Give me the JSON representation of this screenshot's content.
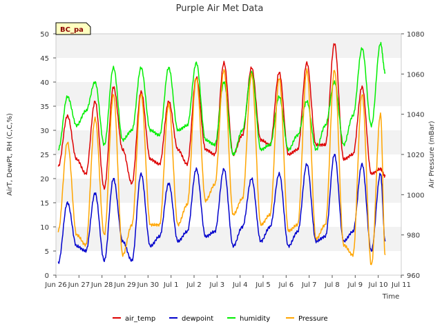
{
  "chart_data": {
    "type": "line",
    "title": "Purple Air Met Data",
    "site_badge": "BC_pa",
    "xlabel": "Time",
    "ylabel_left": "AirT, DewPt, RH (C,C,%)",
    "ylabel_right": "Air Pressure (mBar)",
    "xlim": [
      0,
      15
    ],
    "ylim_left": [
      0,
      50
    ],
    "ylim_right": [
      960,
      1080
    ],
    "x_ticks": [
      0,
      1,
      2,
      3,
      4,
      5,
      6,
      7,
      8,
      9,
      10,
      11,
      12,
      13,
      14,
      15
    ],
    "x_tick_labels": [
      "Jun 26",
      "Jun 27",
      "Jun 28",
      "Jun 29",
      "Jun 30",
      "Jul 1",
      "Jul 2",
      "Jul 3",
      "Jul 4",
      "Jul 5",
      "Jul 6",
      "Jul 7",
      "Jul 8",
      "Jul 9",
      "Jul 10",
      "Jul 11"
    ],
    "y_left_ticks": [
      0,
      5,
      10,
      15,
      20,
      25,
      30,
      35,
      40,
      45,
      50
    ],
    "y_right_ticks": [
      960,
      980,
      1000,
      1020,
      1040,
      1060,
      1080
    ],
    "grid": "horizontal bands",
    "legend_position": "bottom",
    "x": [
      0.1,
      0.5,
      0.9,
      1.3,
      1.7,
      2.1,
      2.5,
      2.9,
      3.3,
      3.7,
      4.1,
      4.5,
      4.9,
      5.3,
      5.7,
      6.1,
      6.5,
      6.9,
      7.3,
      7.7,
      8.1,
      8.5,
      8.9,
      9.3,
      9.7,
      10.1,
      10.5,
      10.9,
      11.3,
      11.7,
      12.1,
      12.5,
      12.9,
      13.3,
      13.7,
      14.1,
      14.3
    ],
    "series": [
      {
        "name": "air_temp",
        "color": "#dd0000",
        "axis": "left",
        "values": [
          22.5,
          33,
          24,
          21,
          36,
          18,
          39,
          26,
          19,
          38,
          24,
          23,
          36,
          26,
          23,
          41,
          26,
          25,
          44,
          25,
          29,
          43,
          28,
          27,
          42,
          25,
          26,
          44,
          27,
          27,
          48,
          24,
          25,
          39,
          21,
          22,
          20.5
        ]
      },
      {
        "name": "dewpoint",
        "color": "#0000cc",
        "axis": "left",
        "values": [
          2.5,
          15,
          6,
          5,
          17,
          3,
          20,
          7,
          3,
          21,
          6,
          8,
          19,
          7,
          9,
          22,
          8,
          9,
          22,
          6,
          10,
          20,
          7,
          10,
          21,
          6,
          9,
          23,
          7,
          8,
          25,
          7,
          9,
          23,
          5,
          21,
          7
        ]
      },
      {
        "name": "humidity",
        "color": "#00ee00",
        "axis": "left",
        "values": [
          26,
          37,
          31,
          34,
          40,
          27,
          43,
          28,
          30,
          43,
          30,
          29,
          43,
          30,
          31,
          44,
          28,
          27,
          40,
          25,
          30,
          42,
          26,
          27,
          37,
          26,
          29,
          36,
          26,
          31,
          40,
          27,
          33,
          47,
          31,
          48,
          42
        ]
      },
      {
        "name": "Pressure",
        "color": "#ffa500",
        "axis": "right",
        "values": [
          982,
          1026,
          980,
          975,
          1038,
          980,
          1050,
          970,
          985,
          1050,
          985,
          985,
          1045,
          985,
          995,
          1058,
          997,
          1005,
          1062,
          990,
          998,
          1060,
          985,
          990,
          1058,
          982,
          985,
          1062,
          978,
          985,
          1062,
          975,
          970,
          1050,
          965,
          1040,
          970
        ]
      }
    ]
  }
}
